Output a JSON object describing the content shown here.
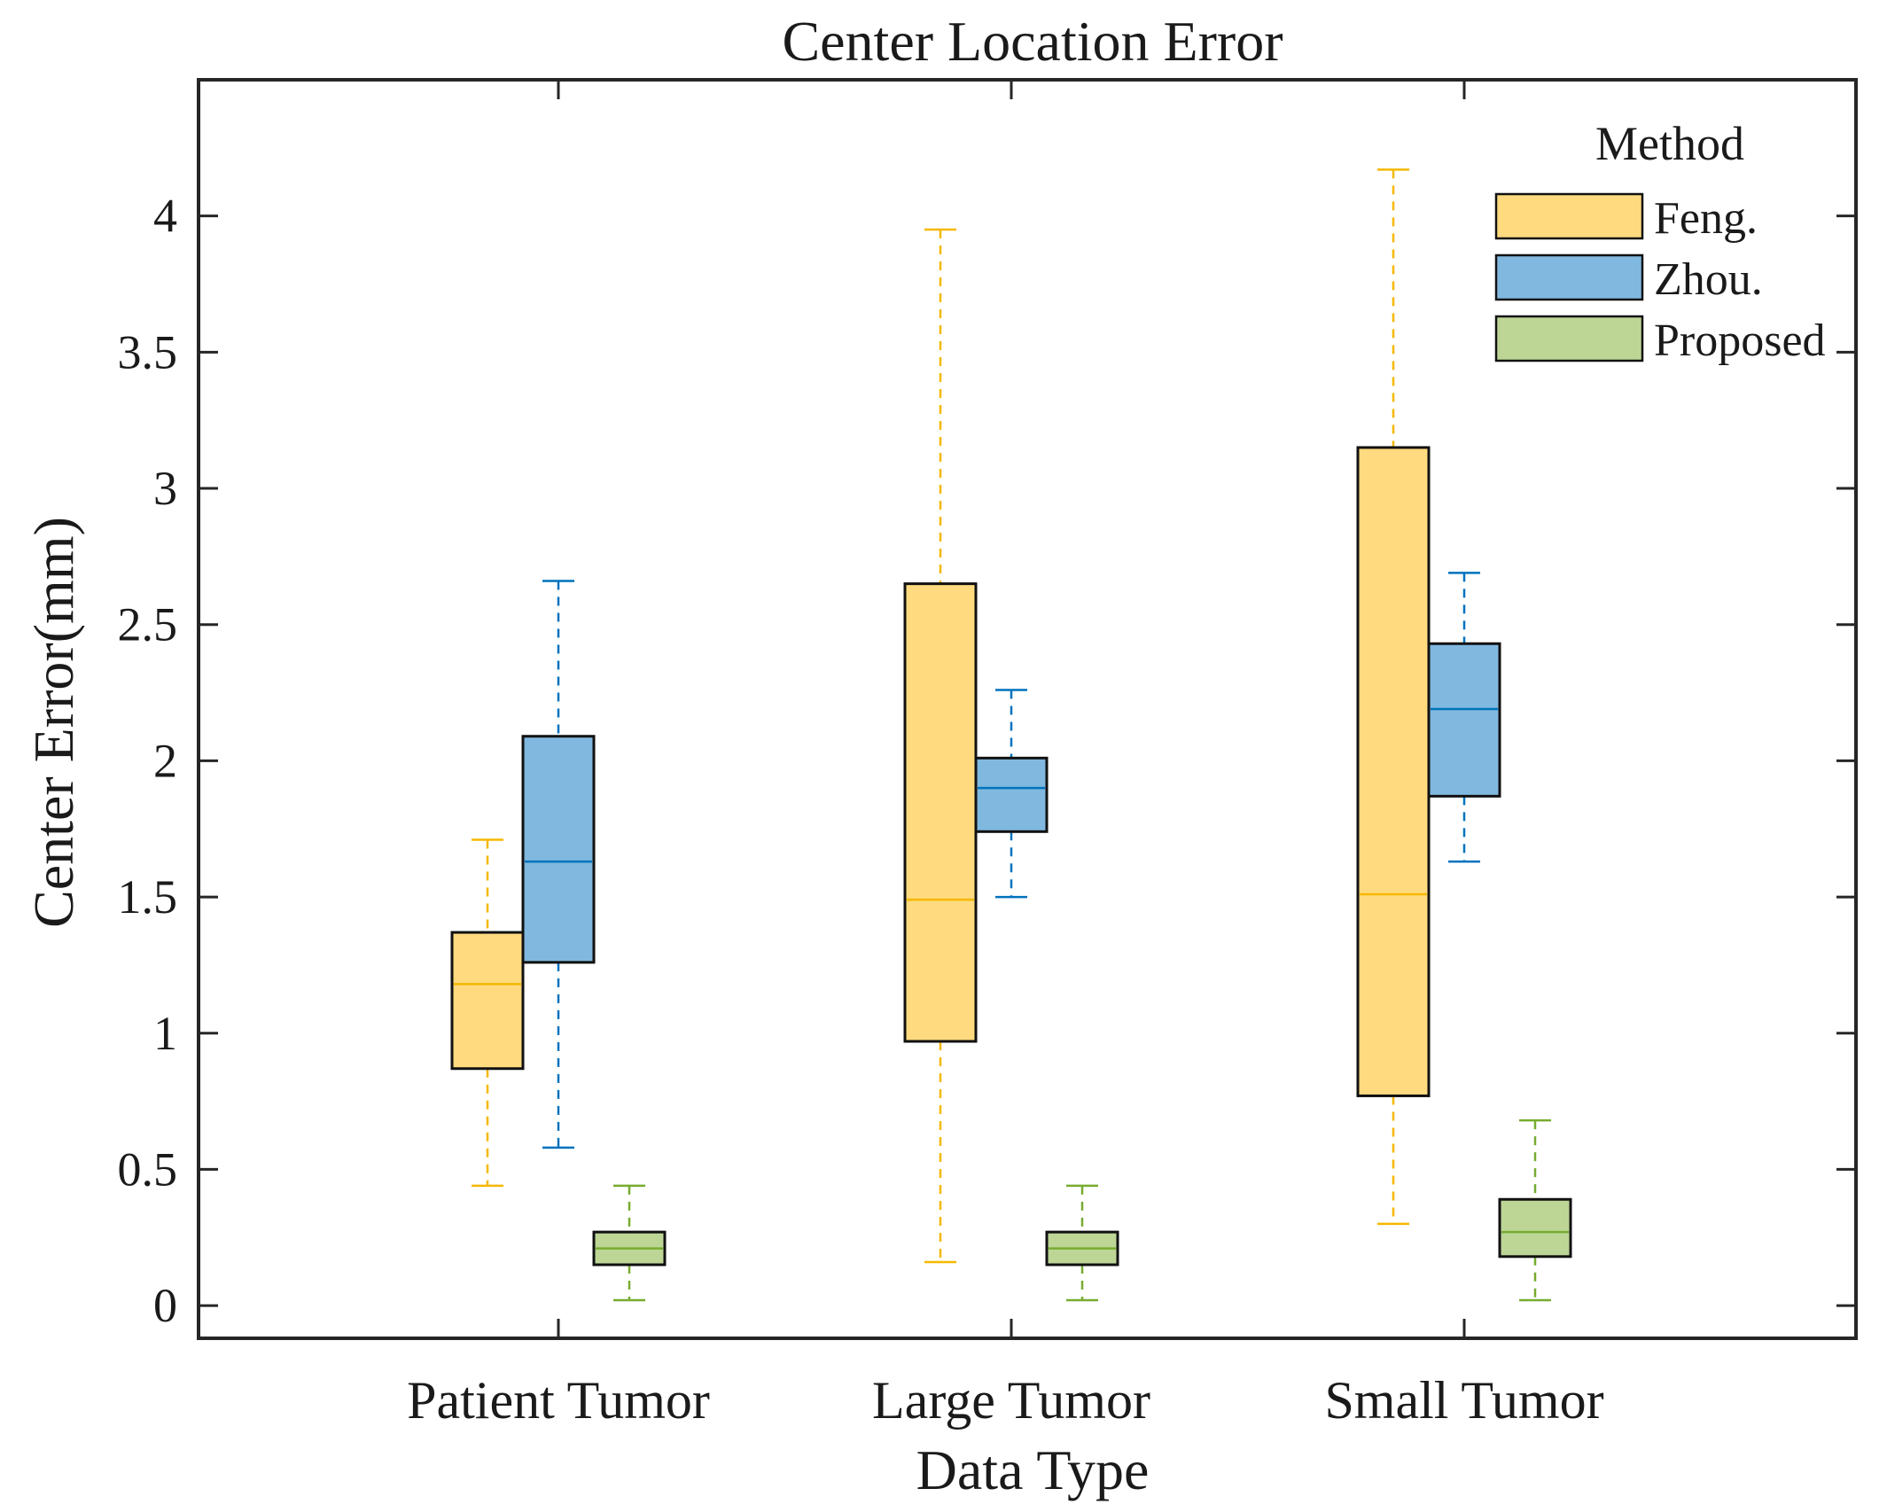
{
  "chart_data": {
    "type": "boxplot",
    "title": "Center Location Error",
    "xlabel": "Data Type",
    "ylabel": "Center Error(mm)",
    "ylim": [
      -0.12,
      4.5
    ],
    "yticks": [
      0,
      0.5,
      1,
      1.5,
      2,
      2.5,
      3,
      3.5,
      4
    ],
    "ytick_labels": [
      "0",
      "0.5",
      "1",
      "1.5",
      "2",
      "2.5",
      "3",
      "3.5",
      "4"
    ],
    "categories": [
      "Patient Tumor",
      "Large Tumor",
      "Small Tumor"
    ],
    "legend": {
      "title": "Method",
      "position": "top-right"
    },
    "series": [
      {
        "name": "Feng.",
        "fill": "#FFDA7F",
        "line": "#F5B800",
        "boxes": [
          {
            "min": 0.44,
            "q1": 0.87,
            "median": 1.18,
            "q3": 1.37,
            "max": 1.71
          },
          {
            "min": 0.16,
            "q1": 0.97,
            "median": 1.49,
            "q3": 2.65,
            "max": 3.95
          },
          {
            "min": 0.3,
            "q1": 0.77,
            "median": 1.51,
            "q3": 3.15,
            "max": 4.17
          }
        ]
      },
      {
        "name": "Zhou.",
        "fill": "#80B8DF",
        "line": "#0072BD",
        "boxes": [
          {
            "min": 0.58,
            "q1": 1.26,
            "median": 1.63,
            "q3": 2.09,
            "max": 2.66
          },
          {
            "min": 1.5,
            "q1": 1.74,
            "median": 1.9,
            "q3": 2.01,
            "max": 2.26
          },
          {
            "min": 1.63,
            "q1": 1.87,
            "median": 2.19,
            "q3": 2.43,
            "max": 2.69
          }
        ]
      },
      {
        "name": "Proposed",
        "fill": "#BDD696",
        "line": "#77AC30",
        "boxes": [
          {
            "min": 0.02,
            "q1": 0.15,
            "median": 0.21,
            "q3": 0.27,
            "max": 0.44
          },
          {
            "min": 0.02,
            "q1": 0.15,
            "median": 0.21,
            "q3": 0.27,
            "max": 0.44
          },
          {
            "min": 0.02,
            "q1": 0.18,
            "median": 0.27,
            "q3": 0.39,
            "max": 0.68
          }
        ]
      }
    ]
  }
}
